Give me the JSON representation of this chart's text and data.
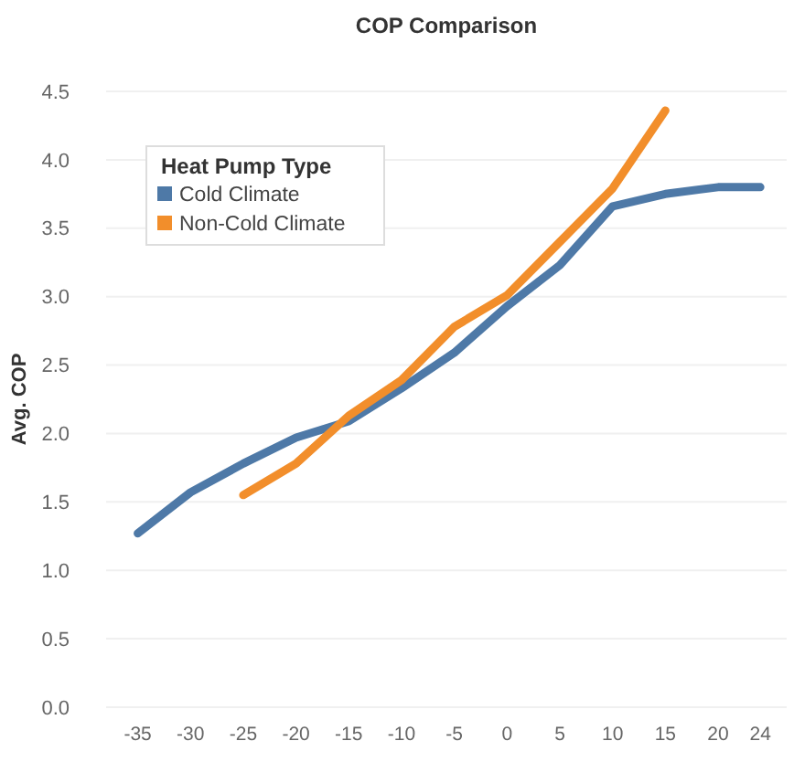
{
  "chart_data": {
    "type": "line",
    "title": "COP Comparison",
    "ylabel": "Avg. COP",
    "legend_title": "Heat Pump Type",
    "legend": "top left",
    "grid": "y",
    "marker": "none",
    "line_style": "solid",
    "x": [
      -35,
      -30,
      -25,
      -20,
      -15,
      -10,
      -5,
      0,
      5,
      10,
      15,
      20,
      24
    ],
    "xlim": [
      -38,
      26.5
    ],
    "xticks": [
      -35,
      -30,
      -25,
      -20,
      -15,
      -10,
      -5,
      0,
      5,
      10,
      15,
      20,
      24
    ],
    "ylim": [
      0,
      4.5
    ],
    "yticks": [
      {
        "value": 0,
        "label": "0.0"
      },
      0.5,
      {
        "value": 1,
        "label": "1.0"
      },
      1.5,
      {
        "value": 2,
        "label": "2.0"
      },
      2.5,
      {
        "value": 3,
        "label": "3.0"
      },
      3.5,
      {
        "value": 4,
        "label": "4.0"
      },
      4.5
    ],
    "series": [
      {
        "name": "Cold Climate",
        "color": "#4e79a7",
        "values": [
          1.27,
          1.57,
          1.78,
          1.97,
          2.09,
          2.33,
          2.59,
          2.93,
          3.23,
          3.66,
          3.75,
          3.8,
          3.8
        ]
      },
      {
        "name": "Non-Cold Climate",
        "color": "#f28e2b",
        "values": [
          null,
          null,
          1.55,
          1.78,
          2.13,
          2.39,
          2.78,
          3.01,
          3.4,
          3.79,
          4.36,
          null,
          null
        ]
      }
    ]
  }
}
